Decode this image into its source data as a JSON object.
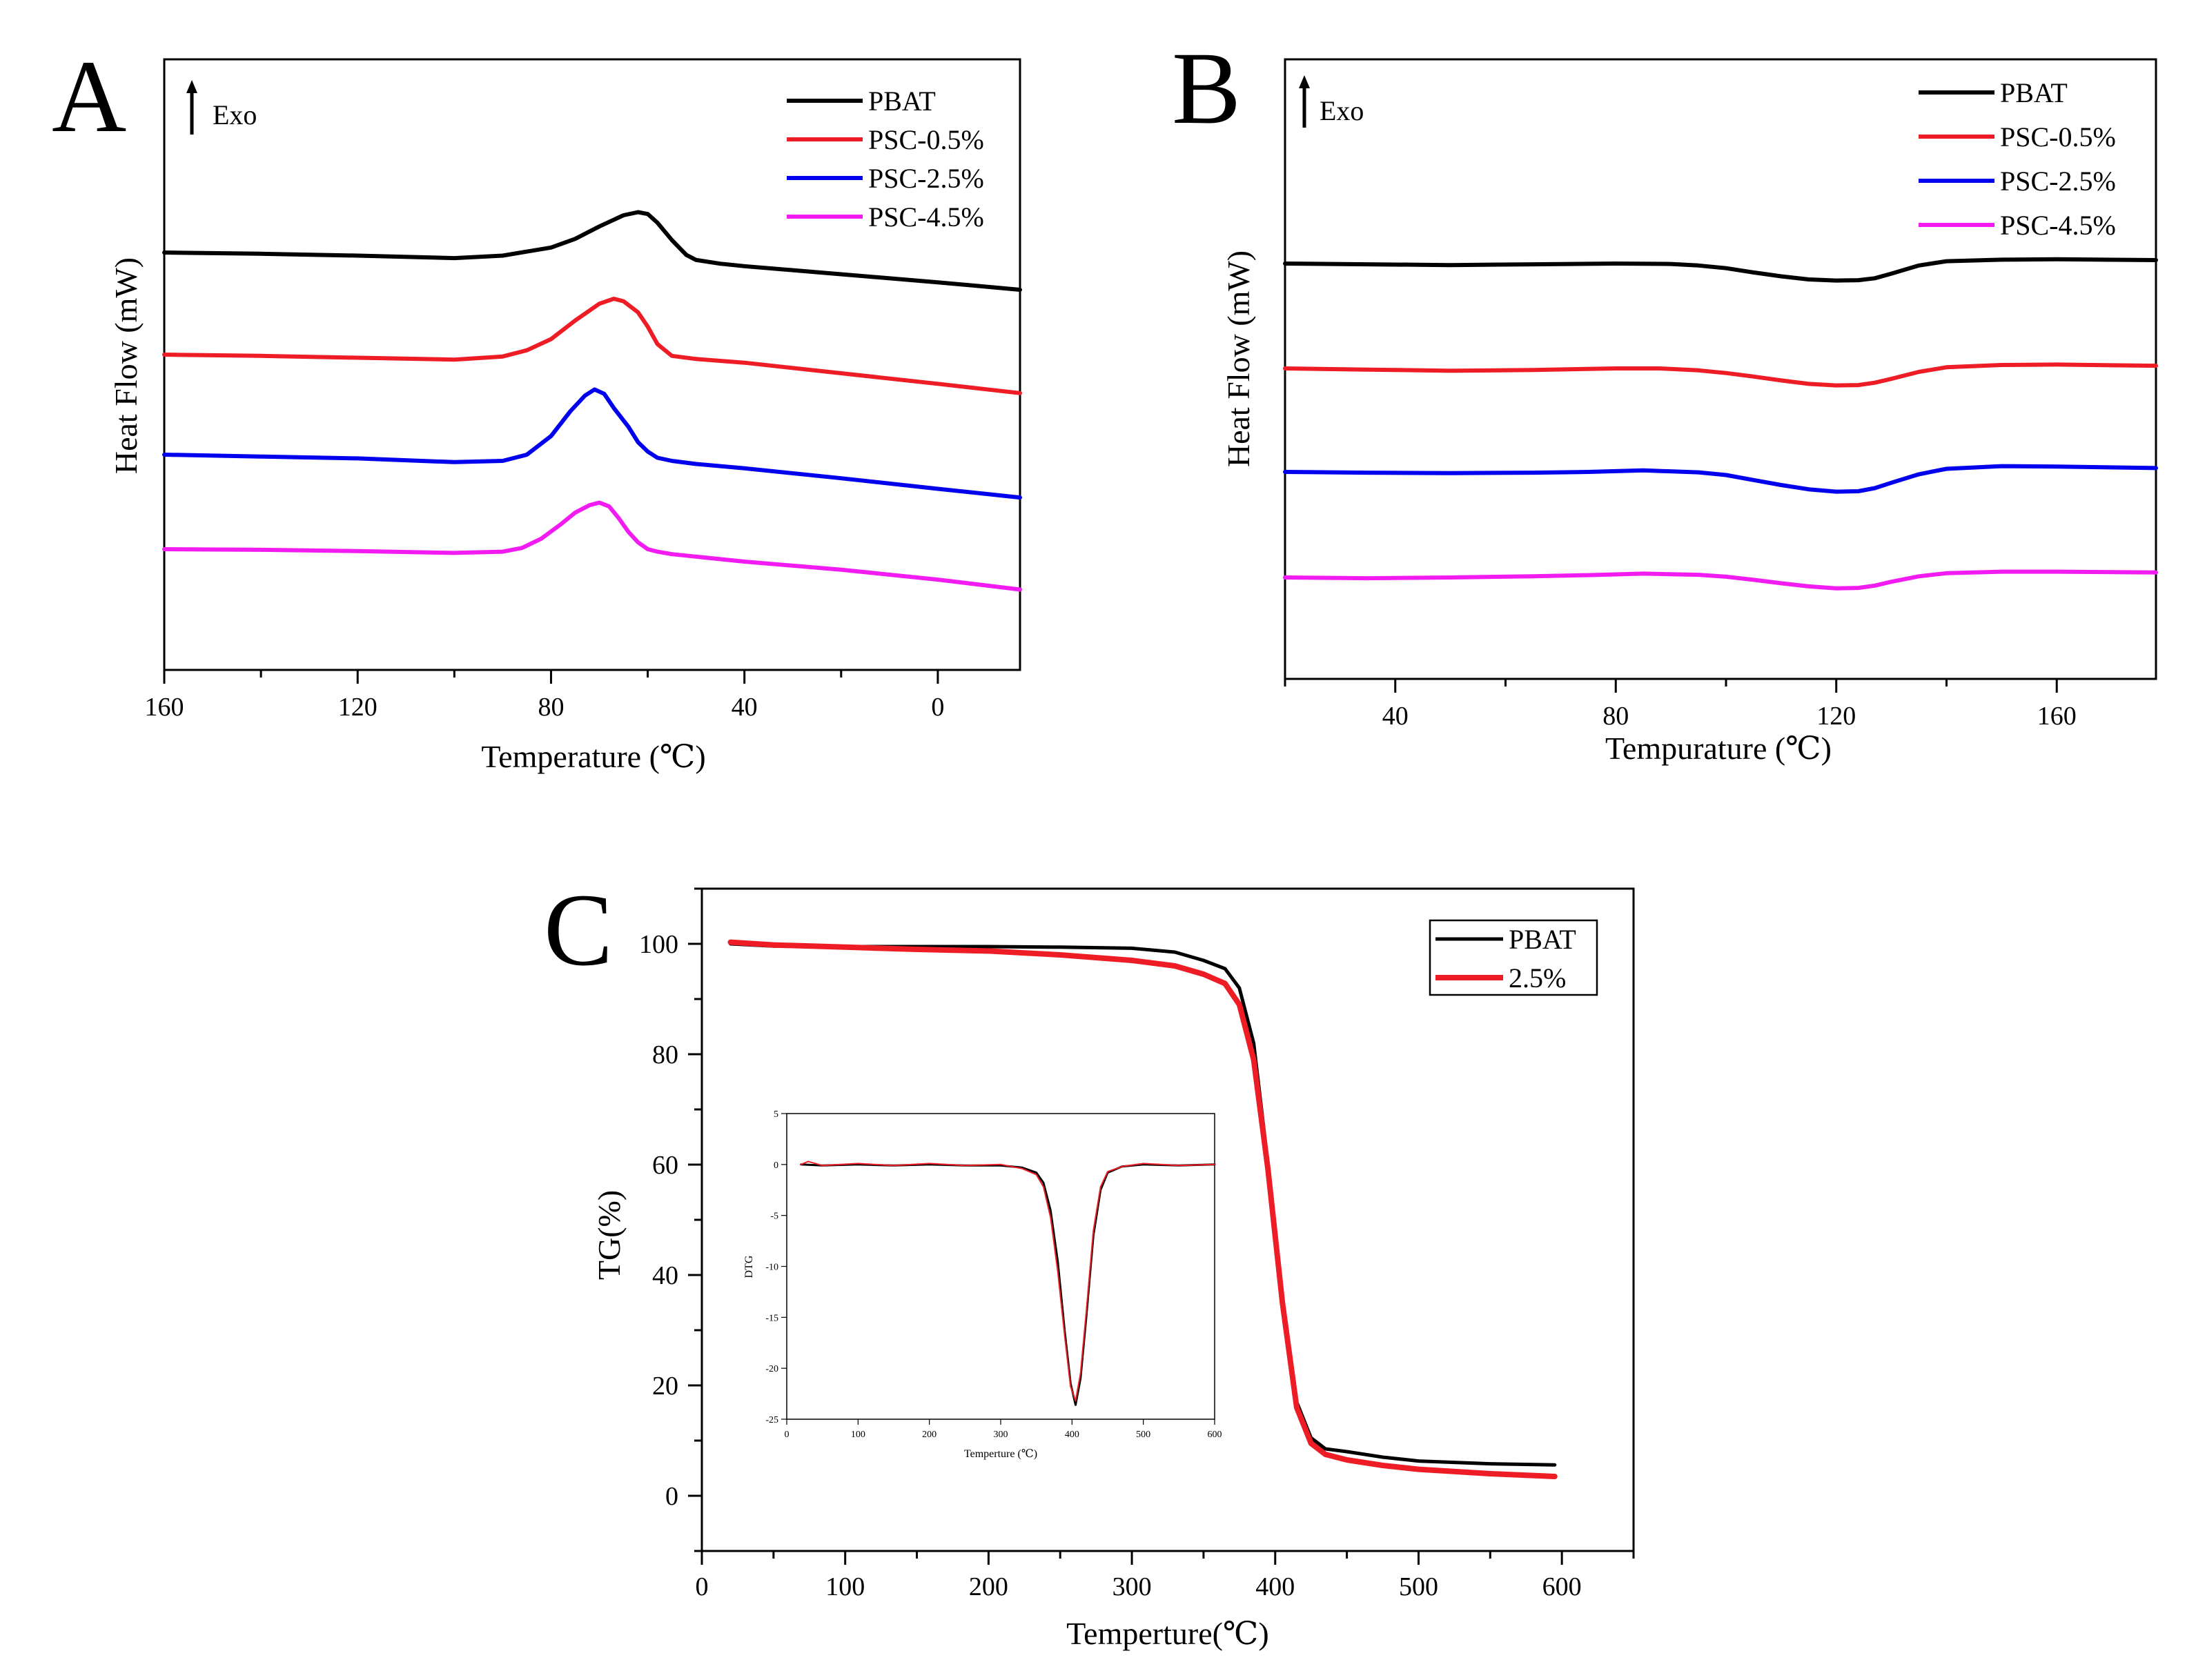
{
  "chart_data": [
    {
      "type": "line",
      "panel": "A",
      "title": "",
      "xlabel": "Temperature (℃)",
      "ylabel": "Heat Flow (mW)",
      "annotation": "Exo",
      "arrow_icon": "up-arrow-icon",
      "xlim": [
        160,
        -17
      ],
      "x_reversed": true,
      "xticks": [
        160,
        120,
        80,
        40,
        0
      ],
      "yticks": [],
      "legend_position": "top-right",
      "series": [
        {
          "name": "PBAT",
          "color": "#000000",
          "x": [
            160,
            140,
            120,
            100,
            90,
            80,
            75,
            70,
            65,
            62,
            60,
            58,
            55,
            52,
            50,
            45,
            40,
            20,
            0,
            -17
          ],
          "y": [
            0.0,
            -0.2,
            -0.5,
            -0.9,
            -0.5,
            0.8,
            2.2,
            4.2,
            6.0,
            6.5,
            6.2,
            4.8,
            2.0,
            -0.4,
            -1.2,
            -1.8,
            -2.2,
            -3.5,
            -4.8,
            -6.0
          ]
        },
        {
          "name": "PSC-0.5%",
          "color": "#ee1c24",
          "x": [
            160,
            140,
            120,
            100,
            90,
            85,
            80,
            75,
            70,
            67,
            65,
            62,
            60,
            58,
            55,
            50,
            40,
            20,
            0,
            -17
          ],
          "y": [
            -11.0,
            -11.2,
            -11.5,
            -11.8,
            -11.3,
            -10.3,
            -8.5,
            -5.5,
            -2.8,
            -2.0,
            -2.4,
            -4.2,
            -6.5,
            -9.3,
            -11.2,
            -11.7,
            -12.3,
            -14.0,
            -15.7,
            -17.2
          ]
        },
        {
          "name": "PSC-2.5%",
          "color": "#0000ee",
          "x": [
            160,
            140,
            120,
            100,
            90,
            85,
            80,
            76,
            73,
            71,
            69,
            67,
            64,
            62,
            60,
            58,
            55,
            50,
            40,
            20,
            0,
            -17
          ],
          "y": [
            -22.0,
            -22.3,
            -22.6,
            -23.2,
            -23.0,
            -22.0,
            -19.0,
            -15.0,
            -12.5,
            -11.5,
            -12.2,
            -14.5,
            -17.5,
            -20.0,
            -21.5,
            -22.5,
            -23.0,
            -23.5,
            -24.2,
            -25.8,
            -27.5,
            -28.9
          ]
        },
        {
          "name": "PSC-4.5%",
          "color": "#f21bf2",
          "x": [
            160,
            140,
            120,
            100,
            90,
            86,
            82,
            78,
            75,
            72,
            70,
            68,
            66,
            64,
            62,
            60,
            58,
            55,
            50,
            40,
            20,
            0,
            -17
          ],
          "y": [
            -32.4,
            -32.5,
            -32.7,
            -33.0,
            -32.8,
            -32.2,
            -30.7,
            -28.4,
            -26.5,
            -25.3,
            -24.9,
            -25.5,
            -27.4,
            -29.6,
            -31.3,
            -32.4,
            -32.8,
            -33.2,
            -33.6,
            -34.4,
            -35.7,
            -37.3,
            -38.9
          ]
        }
      ]
    },
    {
      "type": "line",
      "panel": "B",
      "title": "",
      "xlabel": "Tempuraturе (℃)",
      "ylabel": "Heat Flow (mW)",
      "annotation": "Exo",
      "arrow_icon": "up-arrow-icon",
      "xlim": [
        20,
        178
      ],
      "xticks": [
        40,
        80,
        120,
        160
      ],
      "yticks": [],
      "legend_position": "top-right",
      "series": [
        {
          "name": "PBAT",
          "color": "#000000",
          "x": [
            20,
            35,
            50,
            65,
            80,
            90,
            95,
            100,
            105,
            110,
            115,
            120,
            124,
            127,
            130,
            135,
            140,
            150,
            160,
            178
          ],
          "y": [
            0.0,
            -0.2,
            -0.4,
            -0.2,
            0.0,
            -0.1,
            -0.5,
            -1.2,
            -2.3,
            -3.3,
            -4.1,
            -4.4,
            -4.3,
            -3.8,
            -2.6,
            -0.5,
            0.6,
            1.0,
            1.1,
            0.9
          ]
        },
        {
          "name": "PSC-0.5%",
          "color": "#ee1c24",
          "x": [
            20,
            35,
            50,
            65,
            80,
            88,
            95,
            100,
            105,
            110,
            115,
            120,
            124,
            127,
            130,
            135,
            140,
            150,
            160,
            178
          ],
          "y": [
            -12.0,
            -12.3,
            -12.6,
            -12.4,
            -12.0,
            -12.0,
            -12.5,
            -13.2,
            -14.1,
            -15.1,
            -16.0,
            -16.4,
            -16.3,
            -15.7,
            -14.7,
            -12.9,
            -11.7,
            -11.1,
            -11.0,
            -11.3
          ]
        },
        {
          "name": "PSC-2.5%",
          "color": "#0000ee",
          "x": [
            20,
            35,
            50,
            65,
            75,
            85,
            95,
            100,
            105,
            110,
            115,
            120,
            124,
            127,
            130,
            135,
            140,
            150,
            160,
            178
          ],
          "y": [
            -24.0,
            -24.2,
            -24.3,
            -24.2,
            -24.0,
            -23.6,
            -24.1,
            -24.8,
            -26.1,
            -27.4,
            -28.5,
            -29.1,
            -29.0,
            -28.2,
            -26.8,
            -24.6,
            -23.2,
            -22.5,
            -22.6,
            -23.0
          ]
        },
        {
          "name": "PSC-4.5%",
          "color": "#f21bf2",
          "x": [
            20,
            35,
            50,
            65,
            75,
            85,
            95,
            100,
            105,
            110,
            115,
            120,
            124,
            127,
            130,
            135,
            140,
            150,
            160,
            178
          ],
          "y": [
            -36.0,
            -36.2,
            -36.0,
            -35.7,
            -35.4,
            -35.0,
            -35.3,
            -35.8,
            -36.6,
            -37.5,
            -38.3,
            -38.8,
            -38.7,
            -38.1,
            -37.1,
            -35.7,
            -34.9,
            -34.5,
            -34.5,
            -34.7
          ]
        }
      ]
    },
    {
      "type": "line",
      "panel": "C",
      "title": "",
      "xlabel": "Temperture(℃)",
      "ylabel": "TG(%)",
      "xlim": [
        0,
        650
      ],
      "ylim": [
        -10,
        110
      ],
      "xticks": [
        0,
        100,
        200,
        300,
        400,
        500,
        600
      ],
      "yticks": [
        0,
        20,
        40,
        60,
        80,
        100
      ],
      "legend_position": "top-right",
      "series": [
        {
          "name": "PBAT",
          "color": "#000000",
          "x": [
            20,
            50,
            100,
            150,
            200,
            250,
            300,
            330,
            350,
            365,
            375,
            385,
            395,
            405,
            415,
            425,
            435,
            450,
            475,
            500,
            550,
            595
          ],
          "y": [
            100.0,
            99.6,
            99.5,
            99.5,
            99.5,
            99.4,
            99.2,
            98.5,
            97.0,
            95.5,
            92.0,
            82.0,
            60.0,
            36.0,
            17.0,
            10.5,
            8.5,
            8.0,
            7.0,
            6.3,
            5.8,
            5.6
          ]
        },
        {
          "name": "2.5%",
          "color": "#ee1c24",
          "x": [
            20,
            50,
            100,
            150,
            200,
            250,
            300,
            330,
            350,
            365,
            375,
            385,
            395,
            405,
            415,
            425,
            435,
            450,
            475,
            500,
            550,
            595
          ],
          "y": [
            100.3,
            99.8,
            99.4,
            99.0,
            98.7,
            98.0,
            97.0,
            96.0,
            94.5,
            92.8,
            89.0,
            79.0,
            59.0,
            35.0,
            16.0,
            9.5,
            7.5,
            6.5,
            5.5,
            4.8,
            4.0,
            3.5
          ]
        }
      ],
      "inset": {
        "type": "line",
        "xlabel": "Temperture (℃)",
        "ylabel": "DTG",
        "xlim": [
          0,
          600
        ],
        "ylim": [
          -25,
          5
        ],
        "xticks": [
          0,
          100,
          200,
          300,
          400,
          500,
          600
        ],
        "yticks": [
          5,
          0,
          -5,
          -10,
          -15,
          -20,
          -25
        ],
        "series": [
          {
            "name": "PBAT",
            "color": "#000000",
            "x": [
              20,
              50,
              100,
              150,
              200,
              250,
              300,
              330,
              350,
              360,
              370,
              380,
              390,
              398,
              405,
              412,
              420,
              430,
              440,
              450,
              470,
              500,
              550,
              600
            ],
            "y": [
              0,
              -0.1,
              0,
              -0.1,
              0,
              -0.1,
              -0.1,
              -0.3,
              -0.8,
              -1.8,
              -4.5,
              -9.5,
              -16.5,
              -21.5,
              -23.6,
              -21.0,
              -15.0,
              -7.0,
              -2.5,
              -0.8,
              -0.2,
              0,
              -0.1,
              0
            ]
          },
          {
            "name": "2.5%",
            "color": "#ee1c24",
            "x": [
              20,
              30,
              50,
              100,
              150,
              200,
              250,
              300,
              330,
              350,
              360,
              370,
              380,
              390,
              398,
              405,
              412,
              420,
              430,
              440,
              450,
              470,
              500,
              550,
              600
            ],
            "y": [
              0,
              0.3,
              -0.1,
              0.1,
              -0.1,
              0.1,
              -0.1,
              0,
              -0.4,
              -1.0,
              -2.2,
              -5.2,
              -10.5,
              -17.0,
              -21.8,
              -23.2,
              -20.5,
              -14.5,
              -6.5,
              -2.2,
              -0.7,
              -0.2,
              0.1,
              -0.1,
              0
            ]
          }
        ]
      }
    }
  ],
  "panels": [
    {
      "letter": "A"
    },
    {
      "letter": "B"
    },
    {
      "letter": "C"
    }
  ]
}
